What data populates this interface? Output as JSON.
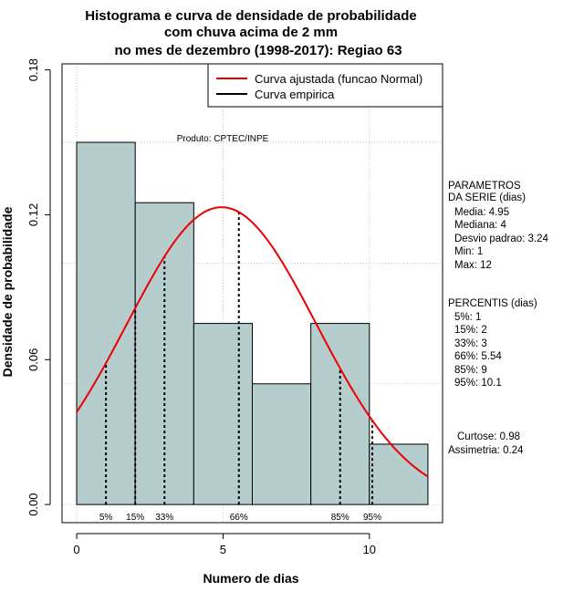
{
  "title_lines": [
    "Histograma e curva de densidade de probabilidade",
    "com chuva acima de 2 mm",
    "no mes de dezembro (1998-2017): Regiao 63"
  ],
  "credit": "Produto: CPTEC/INPE",
  "legend": {
    "fitted": "Curva ajustada (funcao Normal)",
    "empirical": "Curva empirica"
  },
  "colors": {
    "bar_fill": "#b5cdcd",
    "curve": "#ee0000",
    "grid": "#bbbbbb"
  },
  "side_panel": {
    "params_header": [
      "PARAMETROS",
      "DA SERIE (dias)"
    ],
    "params": [
      "Media: 4.95",
      "Mediana: 4",
      "Desvio padrao: 3.24",
      "Min: 1",
      "Max: 12"
    ],
    "percentiles_header": "PERCENTIS (dias)",
    "percentiles": [
      "5%: 1",
      "15%: 2",
      "33%: 3",
      "66%: 5.54",
      "85%: 9",
      "95%: 10.1"
    ],
    "shape": [
      "Curtose: 0.98",
      "Assimetria: 0.24"
    ]
  },
  "chart_data": {
    "type": "bar",
    "xlabel": "Numero de dias",
    "ylabel": "Densidade de probabilidade",
    "xlim": [
      -0.5,
      12.5
    ],
    "ylim": [
      -0.0075,
      0.1825
    ],
    "xticks": [
      0,
      5,
      10
    ],
    "xtick_labels": [
      "0",
      "5",
      "10"
    ],
    "yticks": [
      0.0,
      0.06,
      0.12,
      0.18
    ],
    "ytick_labels": [
      "0.00",
      "0.06",
      "0.12",
      "0.18"
    ],
    "grid_x": [
      0,
      5,
      10
    ],
    "grid_y": [
      0.0,
      0.05,
      0.1,
      0.15
    ],
    "bins": [
      {
        "x0": 0,
        "x1": 2,
        "density": 0.15
      },
      {
        "x0": 2,
        "x1": 4,
        "density": 0.125
      },
      {
        "x0": 4,
        "x1": 6,
        "density": 0.075
      },
      {
        "x0": 6,
        "x1": 8,
        "density": 0.05
      },
      {
        "x0": 8,
        "x1": 10,
        "density": 0.075
      },
      {
        "x0": 10,
        "x1": 12,
        "density": 0.025
      }
    ],
    "normal_fit": {
      "mean": 4.95,
      "sd": 3.24,
      "x_from": 0,
      "x_to": 12
    },
    "percentile_markers": [
      {
        "label": "5%",
        "x": 1
      },
      {
        "label": "15%",
        "x": 2
      },
      {
        "label": "33%",
        "x": 3
      },
      {
        "label": "66%",
        "x": 5.54
      },
      {
        "label": "85%",
        "x": 9
      },
      {
        "label": "95%",
        "x": 10.1
      }
    ]
  }
}
